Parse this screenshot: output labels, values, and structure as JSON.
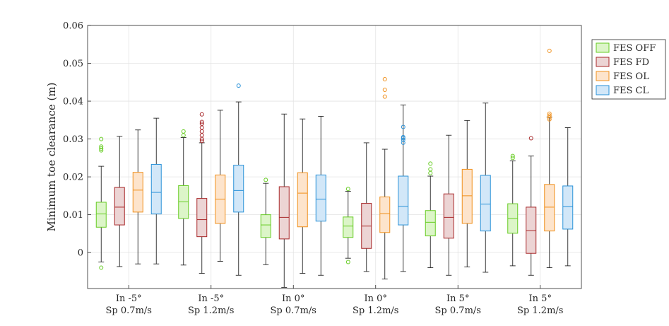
{
  "chart_data": {
    "type": "box",
    "title": "",
    "xlabel": "",
    "ylabel": "Minimum toe clearance (m)",
    "ylim": [
      -0.0095,
      0.06
    ],
    "yticks": [
      0,
      0.01,
      0.02,
      0.03,
      0.04,
      0.05,
      0.06
    ],
    "ytick_labels": [
      "0",
      "0.01",
      "0.02",
      "0.03",
      "0.04",
      "0.05",
      "0.06"
    ],
    "grid": true,
    "legend_position": "top-right",
    "categories": [
      {
        "line1": "In -5°",
        "line2": "Sp 0.7m/s"
      },
      {
        "line1": "In -5°",
        "line2": "Sp 1.2m/s"
      },
      {
        "line1": "In 0°",
        "line2": "Sp 0.7m/s"
      },
      {
        "line1": "In 0°",
        "line2": "Sp 1.2m/s"
      },
      {
        "line1": "In 5°",
        "line2": "Sp 0.7m/s"
      },
      {
        "line1": "In 5°",
        "line2": "Sp 1.2m/s"
      }
    ],
    "series": [
      {
        "name": "FES OFF",
        "edge": "#66cc22",
        "fill": "#dcf5c8",
        "boxes": [
          {
            "whislo": -0.0025,
            "q1": 0.0067,
            "med": 0.0102,
            "q3": 0.0133,
            "whishi": 0.0228,
            "fliers": [
              -0.004,
              0.027,
              0.0275,
              0.028,
              0.03
            ]
          },
          {
            "whislo": -0.0033,
            "q1": 0.009,
            "med": 0.0134,
            "q3": 0.0177,
            "whishi": 0.0304,
            "fliers": [
              0.031,
              0.032
            ]
          },
          {
            "whislo": -0.0032,
            "q1": 0.004,
            "med": 0.0073,
            "q3": 0.01,
            "whishi": 0.0183,
            "fliers": [
              0.0192
            ]
          },
          {
            "whislo": -0.0015,
            "q1": 0.004,
            "med": 0.007,
            "q3": 0.0094,
            "whishi": 0.0162,
            "fliers": [
              -0.0025,
              0.0168
            ]
          },
          {
            "whislo": -0.004,
            "q1": 0.0044,
            "med": 0.008,
            "q3": 0.0111,
            "whishi": 0.0202,
            "fliers": [
              0.021,
              0.022,
              0.0235
            ]
          },
          {
            "whislo": -0.0035,
            "q1": 0.0051,
            "med": 0.009,
            "q3": 0.0129,
            "whishi": 0.0242,
            "fliers": [
              0.025,
              0.0255
            ]
          }
        ]
      },
      {
        "name": "FES FD",
        "edge": "#a8282a",
        "fill": "#ecd4d4",
        "boxes": [
          {
            "whislo": -0.0037,
            "q1": 0.0073,
            "med": 0.012,
            "q3": 0.0172,
            "whishi": 0.0307,
            "fliers": []
          },
          {
            "whislo": -0.0055,
            "q1": 0.0042,
            "med": 0.0087,
            "q3": 0.0143,
            "whishi": 0.029,
            "fliers": [
              0.0295,
              0.03,
              0.031,
              0.032,
              0.033,
              0.034,
              0.0345,
              0.0365
            ]
          },
          {
            "whislo": -0.0092,
            "q1": 0.0036,
            "med": 0.0093,
            "q3": 0.0174,
            "whishi": 0.0366,
            "fliers": []
          },
          {
            "whislo": -0.005,
            "q1": 0.0011,
            "med": 0.007,
            "q3": 0.013,
            "whishi": 0.029,
            "fliers": []
          },
          {
            "whislo": -0.006,
            "q1": 0.0038,
            "med": 0.0093,
            "q3": 0.0155,
            "whishi": 0.031,
            "fliers": []
          },
          {
            "whislo": -0.006,
            "q1": -0.0002,
            "med": 0.0058,
            "q3": 0.012,
            "whishi": 0.0255,
            "fliers": [
              0.0302
            ]
          }
        ]
      },
      {
        "name": "FES OL",
        "edge": "#f0901c",
        "fill": "#fde4cc",
        "boxes": [
          {
            "whislo": -0.003,
            "q1": 0.0107,
            "med": 0.0165,
            "q3": 0.0212,
            "whishi": 0.0324,
            "fliers": []
          },
          {
            "whislo": -0.0023,
            "q1": 0.0077,
            "med": 0.0141,
            "q3": 0.0205,
            "whishi": 0.0376,
            "fliers": []
          },
          {
            "whislo": -0.0055,
            "q1": 0.0068,
            "med": 0.0157,
            "q3": 0.0211,
            "whishi": 0.0353,
            "fliers": []
          },
          {
            "whislo": -0.007,
            "q1": 0.0053,
            "med": 0.0103,
            "q3": 0.0147,
            "whishi": 0.0273,
            "fliers": [
              0.0412,
              0.043,
              0.0458
            ]
          },
          {
            "whislo": -0.0038,
            "q1": 0.0077,
            "med": 0.015,
            "q3": 0.022,
            "whishi": 0.0349,
            "fliers": []
          },
          {
            "whislo": -0.004,
            "q1": 0.0057,
            "med": 0.012,
            "q3": 0.018,
            "whishi": 0.0358,
            "fliers": [
              0.0352,
              0.0357,
              0.0362,
              0.0367,
              0.0533
            ]
          }
        ]
      },
      {
        "name": "FES CL",
        "edge": "#2a92d8",
        "fill": "#d2e7f8",
        "boxes": [
          {
            "whislo": -0.003,
            "q1": 0.0102,
            "med": 0.0159,
            "q3": 0.0233,
            "whishi": 0.0355,
            "fliers": []
          },
          {
            "whislo": -0.006,
            "q1": 0.0107,
            "med": 0.0164,
            "q3": 0.0231,
            "whishi": 0.0398,
            "fliers": [
              0.0441
            ]
          },
          {
            "whislo": -0.006,
            "q1": 0.0083,
            "med": 0.0141,
            "q3": 0.0205,
            "whishi": 0.036,
            "fliers": []
          },
          {
            "whislo": -0.005,
            "q1": 0.0073,
            "med": 0.0122,
            "q3": 0.0202,
            "whishi": 0.039,
            "fliers": [
              0.029,
              0.0298,
              0.0302,
              0.0305,
              0.0332
            ]
          },
          {
            "whislo": -0.0052,
            "q1": 0.0057,
            "med": 0.0128,
            "q3": 0.0204,
            "whishi": 0.0395,
            "fliers": []
          },
          {
            "whislo": -0.0035,
            "q1": 0.0062,
            "med": 0.0121,
            "q3": 0.0176,
            "whishi": 0.033,
            "fliers": []
          }
        ]
      }
    ]
  }
}
